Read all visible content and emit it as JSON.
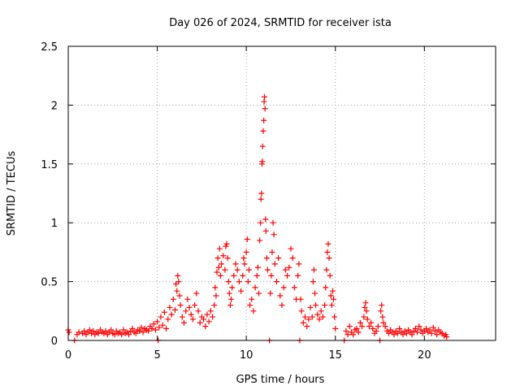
{
  "chart_data": {
    "type": "scatter",
    "title": "Day 026 of 2024, SRMTID for receiver ista",
    "xlabel": "GPS time / hours",
    "ylabel": "SRMTID / TECUs",
    "xlim": [
      0,
      24
    ],
    "ylim": [
      0,
      2.5
    ],
    "xticks": [
      0,
      5,
      10,
      15,
      20
    ],
    "xtick_labels": [
      "0",
      "5",
      "10",
      "15",
      "20"
    ],
    "yticks": [
      0,
      0.5,
      1,
      1.5,
      2,
      2.5
    ],
    "ytick_labels": [
      "0",
      "0.5",
      "1",
      "1.5",
      "2",
      "2.5"
    ],
    "grid": true,
    "marker": "+",
    "color": "#ff0000",
    "series": [
      {
        "name": "SRMTID",
        "points": [
          [
            0.0,
            0.09
          ],
          [
            0.05,
            0.07
          ],
          [
            0.35,
            0.0
          ],
          [
            0.5,
            0.05
          ],
          [
            0.6,
            0.07
          ],
          [
            0.8,
            0.06
          ],
          [
            0.9,
            0.08
          ],
          [
            1.0,
            0.05
          ],
          [
            1.1,
            0.07
          ],
          [
            1.2,
            0.09
          ],
          [
            1.3,
            0.06
          ],
          [
            1.4,
            0.08
          ],
          [
            1.5,
            0.05
          ],
          [
            1.6,
            0.07
          ],
          [
            1.7,
            0.06
          ],
          [
            1.8,
            0.09
          ],
          [
            1.9,
            0.07
          ],
          [
            2.0,
            0.06
          ],
          [
            2.1,
            0.08
          ],
          [
            2.2,
            0.05
          ],
          [
            2.3,
            0.07
          ],
          [
            2.4,
            0.09
          ],
          [
            2.5,
            0.06
          ],
          [
            2.6,
            0.05
          ],
          [
            2.7,
            0.08
          ],
          [
            2.8,
            0.06
          ],
          [
            2.9,
            0.07
          ],
          [
            3.0,
            0.05
          ],
          [
            3.1,
            0.09
          ],
          [
            3.2,
            0.06
          ],
          [
            3.3,
            0.07
          ],
          [
            3.4,
            0.05
          ],
          [
            3.5,
            0.08
          ],
          [
            3.6,
            0.1
          ],
          [
            3.7,
            0.07
          ],
          [
            3.8,
            0.06
          ],
          [
            3.9,
            0.09
          ],
          [
            4.0,
            0.08
          ],
          [
            4.1,
            0.11
          ],
          [
            4.2,
            0.07
          ],
          [
            4.3,
            0.1
          ],
          [
            4.4,
            0.09
          ],
          [
            4.5,
            0.08
          ],
          [
            4.6,
            0.12
          ],
          [
            4.7,
            0.1
          ],
          [
            4.8,
            0.14
          ],
          [
            4.9,
            0.09
          ],
          [
            5.0,
            0.16
          ],
          [
            5.05,
            0.0
          ],
          [
            5.1,
            0.11
          ],
          [
            5.2,
            0.2
          ],
          [
            5.3,
            0.13
          ],
          [
            5.4,
            0.24
          ],
          [
            5.5,
            0.1
          ],
          [
            5.6,
            0.18
          ],
          [
            5.7,
            0.28
          ],
          [
            5.8,
            0.22
          ],
          [
            5.9,
            0.35
          ],
          [
            6.0,
            0.26
          ],
          [
            6.05,
            0.48
          ],
          [
            6.1,
            0.42
          ],
          [
            6.15,
            0.55
          ],
          [
            6.2,
            0.5
          ],
          [
            6.25,
            0.38
          ],
          [
            6.3,
            0.3
          ],
          [
            6.4,
            0.2
          ],
          [
            6.5,
            0.15
          ],
          [
            6.6,
            0.25
          ],
          [
            6.7,
            0.35
          ],
          [
            6.8,
            0.28
          ],
          [
            6.9,
            0.22
          ],
          [
            7.0,
            0.18
          ],
          [
            7.1,
            0.3
          ],
          [
            7.2,
            0.4
          ],
          [
            7.3,
            0.25
          ],
          [
            7.4,
            0.15
          ],
          [
            7.5,
            0.2
          ],
          [
            7.6,
            0.18
          ],
          [
            7.7,
            0.12
          ],
          [
            7.8,
            0.22
          ],
          [
            7.9,
            0.16
          ],
          [
            8.0,
            0.25
          ],
          [
            8.1,
            0.2
          ],
          [
            8.2,
            0.3
          ],
          [
            8.25,
            0.45
          ],
          [
            8.3,
            0.38
          ],
          [
            8.35,
            0.58
          ],
          [
            8.4,
            0.7
          ],
          [
            8.45,
            0.62
          ],
          [
            8.5,
            0.78
          ],
          [
            8.55,
            0.55
          ],
          [
            8.6,
            0.65
          ],
          [
            8.7,
            0.72
          ],
          [
            8.8,
            0.6
          ],
          [
            8.85,
            0.8
          ],
          [
            8.9,
            0.82
          ],
          [
            8.95,
            0.7
          ],
          [
            9.0,
            0.5
          ],
          [
            9.05,
            0.4
          ],
          [
            9.1,
            0.3
          ],
          [
            9.15,
            0.35
          ],
          [
            9.2,
            0.45
          ],
          [
            9.3,
            0.55
          ],
          [
            9.4,
            0.65
          ],
          [
            9.5,
            0.6
          ],
          [
            9.6,
            0.5
          ],
          [
            9.7,
            0.42
          ],
          [
            9.8,
            0.55
          ],
          [
            9.85,
            0.7
          ],
          [
            9.9,
            0.65
          ],
          [
            10.0,
            0.75
          ],
          [
            10.05,
            0.86
          ],
          [
            10.1,
            0.5
          ],
          [
            10.15,
            0.6
          ],
          [
            10.2,
            0.3
          ],
          [
            10.3,
            0.35
          ],
          [
            10.4,
            0.25
          ],
          [
            10.5,
            0.45
          ],
          [
            10.6,
            0.55
          ],
          [
            10.65,
            0.62
          ],
          [
            10.7,
            0.4
          ],
          [
            10.75,
            0.85
          ],
          [
            10.8,
            1.0
          ],
          [
            10.82,
            1.2
          ],
          [
            10.85,
            1.25
          ],
          [
            10.88,
            1.5
          ],
          [
            10.9,
            1.52
          ],
          [
            10.92,
            1.65
          ],
          [
            10.95,
            1.78
          ],
          [
            10.98,
            1.87
          ],
          [
            11.0,
            2.03
          ],
          [
            11.02,
            2.07
          ],
          [
            11.05,
            1.97
          ],
          [
            11.08,
            1.03
          ],
          [
            11.1,
            0.93
          ],
          [
            11.15,
            0.7
          ],
          [
            11.2,
            0.6
          ],
          [
            11.3,
            0.0
          ],
          [
            11.35,
            0.4
          ],
          [
            11.4,
            0.55
          ],
          [
            11.45,
            0.75
          ],
          [
            11.5,
            1.0
          ],
          [
            11.55,
            0.9
          ],
          [
            11.6,
            0.65
          ],
          [
            11.7,
            0.5
          ],
          [
            11.8,
            0.7
          ],
          [
            11.9,
            0.38
          ],
          [
            12.0,
            0.3
          ],
          [
            12.1,
            0.45
          ],
          [
            12.2,
            0.6
          ],
          [
            12.3,
            0.55
          ],
          [
            12.4,
            0.62
          ],
          [
            12.5,
            0.78
          ],
          [
            12.6,
            0.7
          ],
          [
            12.7,
            0.45
          ],
          [
            12.8,
            0.35
          ],
          [
            12.9,
            0.55
          ],
          [
            12.95,
            0.65
          ],
          [
            13.0,
            0.0
          ],
          [
            13.05,
            0.35
          ],
          [
            13.1,
            0.25
          ],
          [
            13.2,
            0.15
          ],
          [
            13.3,
            0.2
          ],
          [
            13.4,
            0.12
          ],
          [
            13.5,
            0.18
          ],
          [
            13.6,
            0.28
          ],
          [
            13.7,
            0.2
          ],
          [
            13.75,
            0.5
          ],
          [
            13.8,
            0.6
          ],
          [
            13.85,
            0.4
          ],
          [
            13.9,
            0.3
          ],
          [
            14.0,
            0.22
          ],
          [
            14.1,
            0.18
          ],
          [
            14.2,
            0.25
          ],
          [
            14.3,
            0.2
          ],
          [
            14.4,
            0.3
          ],
          [
            14.45,
            0.45
          ],
          [
            14.5,
            0.6
          ],
          [
            14.55,
            0.75
          ],
          [
            14.6,
            0.82
          ],
          [
            14.65,
            0.7
          ],
          [
            14.7,
            0.55
          ],
          [
            14.75,
            0.38
          ],
          [
            14.8,
            0.3
          ],
          [
            14.85,
            0.42
          ],
          [
            14.9,
            0.35
          ],
          [
            14.95,
            0.2
          ],
          [
            15.0,
            0.1
          ],
          [
            15.5,
            0.0
          ],
          [
            15.6,
            0.08
          ],
          [
            15.7,
            0.05
          ],
          [
            15.8,
            0.12
          ],
          [
            15.9,
            0.07
          ],
          [
            16.0,
            0.05
          ],
          [
            16.1,
            0.09
          ],
          [
            16.2,
            0.1
          ],
          [
            16.3,
            0.07
          ],
          [
            16.4,
            0.15
          ],
          [
            16.5,
            0.12
          ],
          [
            16.6,
            0.2
          ],
          [
            16.65,
            0.28
          ],
          [
            16.7,
            0.32
          ],
          [
            16.75,
            0.25
          ],
          [
            16.8,
            0.18
          ],
          [
            16.9,
            0.12
          ],
          [
            17.0,
            0.15
          ],
          [
            17.1,
            0.1
          ],
          [
            17.2,
            0.06
          ],
          [
            17.3,
            0.08
          ],
          [
            17.4,
            0.12
          ],
          [
            17.5,
            0.0
          ],
          [
            17.55,
            0.25
          ],
          [
            17.6,
            0.3
          ],
          [
            17.65,
            0.2
          ],
          [
            17.7,
            0.15
          ],
          [
            17.8,
            0.12
          ],
          [
            17.9,
            0.08
          ],
          [
            18.0,
            0.06
          ],
          [
            18.1,
            0.09
          ],
          [
            18.2,
            0.07
          ],
          [
            18.3,
            0.05
          ],
          [
            18.4,
            0.08
          ],
          [
            18.5,
            0.06
          ],
          [
            18.6,
            0.1
          ],
          [
            18.7,
            0.07
          ],
          [
            18.8,
            0.05
          ],
          [
            18.9,
            0.08
          ],
          [
            19.0,
            0.06
          ],
          [
            19.1,
            0.09
          ],
          [
            19.2,
            0.07
          ],
          [
            19.3,
            0.05
          ],
          [
            19.4,
            0.08
          ],
          [
            19.5,
            0.1
          ],
          [
            19.6,
            0.07
          ],
          [
            19.7,
            0.12
          ],
          [
            19.8,
            0.09
          ],
          [
            19.9,
            0.06
          ],
          [
            20.0,
            0.08
          ],
          [
            20.1,
            0.1
          ],
          [
            20.2,
            0.07
          ],
          [
            20.3,
            0.09
          ],
          [
            20.4,
            0.06
          ],
          [
            20.5,
            0.11
          ],
          [
            20.6,
            0.08
          ],
          [
            20.7,
            0.05
          ],
          [
            20.8,
            0.09
          ],
          [
            20.9,
            0.07
          ],
          [
            21.0,
            0.06
          ],
          [
            21.1,
            0.04
          ],
          [
            21.2,
            0.05
          ],
          [
            21.25,
            0.03
          ]
        ]
      }
    ]
  }
}
